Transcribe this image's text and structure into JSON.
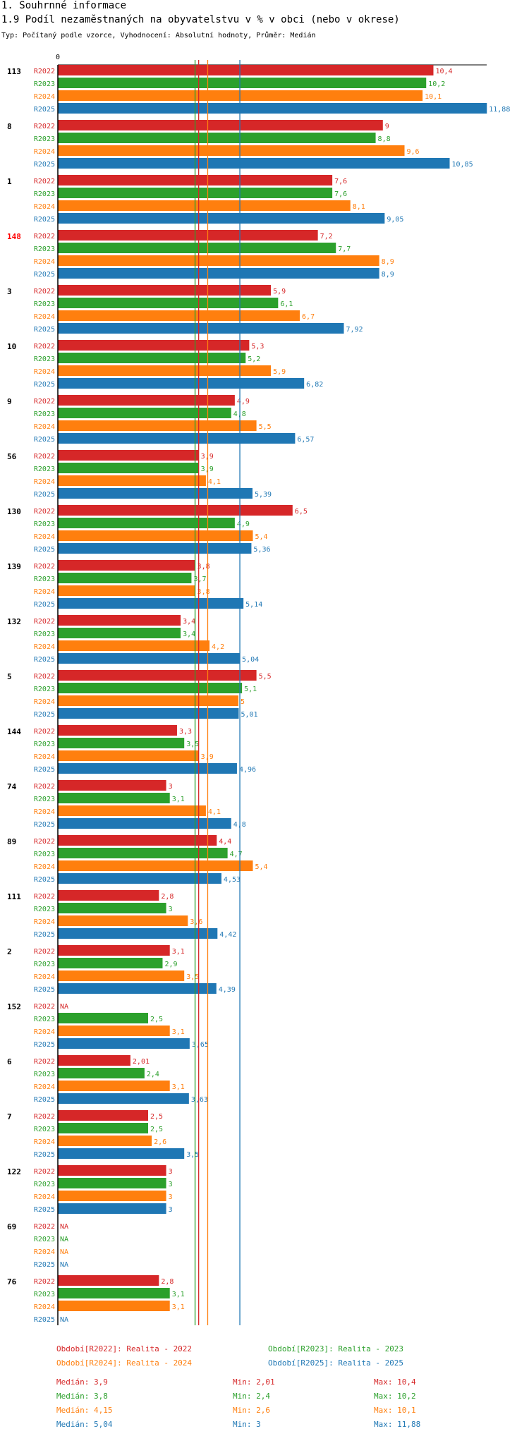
{
  "section_title": "1. Souhrnné informace",
  "chart_title": "1.9 Podíl nezaměstnaných na obyvatelstvu v % v obci (nebo v okrese)",
  "chart_subtitle": "Typ: Počítaný podle vzorce, Vyhodnocení: Absolutní hodnoty, Průměr: Medián",
  "colors": {
    "R2022": "#d62728",
    "R2023": "#2ca02c",
    "R2024": "#ff7f0e",
    "R2025": "#1f77b4",
    "highlight_group": "#ff0000"
  },
  "chart_data": {
    "type": "bar",
    "orientation": "horizontal",
    "x_tick_label": "0",
    "series_names": [
      "R2022",
      "R2023",
      "R2024",
      "R2025"
    ],
    "na_label": "NA",
    "groups": [
      {
        "label": "113",
        "highlight": false,
        "values": [
          10.4,
          10.2,
          10.1,
          11.88
        ],
        "labels": [
          "10,4",
          "10,2",
          "10,1",
          "11,88"
        ]
      },
      {
        "label": "8",
        "highlight": false,
        "values": [
          9,
          8.8,
          9.6,
          10.85
        ],
        "labels": [
          "9",
          "8,8",
          "9,6",
          "10,85"
        ]
      },
      {
        "label": "1",
        "highlight": false,
        "values": [
          7.6,
          7.6,
          8.1,
          9.05
        ],
        "labels": [
          "7,6",
          "7,6",
          "8,1",
          "9,05"
        ]
      },
      {
        "label": "148",
        "highlight": true,
        "values": [
          7.2,
          7.7,
          8.9,
          8.9
        ],
        "labels": [
          "7,2",
          "7,7",
          "8,9",
          "8,9"
        ]
      },
      {
        "label": "3",
        "highlight": false,
        "values": [
          5.9,
          6.1,
          6.7,
          7.92
        ],
        "labels": [
          "5,9",
          "6,1",
          "6,7",
          "7,92"
        ]
      },
      {
        "label": "10",
        "highlight": false,
        "values": [
          5.3,
          5.2,
          5.9,
          6.82
        ],
        "labels": [
          "5,3",
          "5,2",
          "5,9",
          "6,82"
        ]
      },
      {
        "label": "9",
        "highlight": false,
        "values": [
          4.9,
          4.8,
          5.5,
          6.57
        ],
        "labels": [
          "4,9",
          "4,8",
          "5,5",
          "6,57"
        ]
      },
      {
        "label": "56",
        "highlight": false,
        "values": [
          3.9,
          3.9,
          4.1,
          5.39
        ],
        "labels": [
          "3,9",
          "3,9",
          "4,1",
          "5,39"
        ]
      },
      {
        "label": "130",
        "highlight": false,
        "values": [
          6.5,
          4.9,
          5.4,
          5.36
        ],
        "labels": [
          "6,5",
          "4,9",
          "5,4",
          "5,36"
        ]
      },
      {
        "label": "139",
        "highlight": false,
        "values": [
          3.8,
          3.7,
          3.8,
          5.14
        ],
        "labels": [
          "3,8",
          "3,7",
          "3,8",
          "5,14"
        ]
      },
      {
        "label": "132",
        "highlight": false,
        "values": [
          3.4,
          3.4,
          4.2,
          5.04
        ],
        "labels": [
          "3,4",
          "3,4",
          "4,2",
          "5,04"
        ]
      },
      {
        "label": "5",
        "highlight": false,
        "values": [
          5.5,
          5.1,
          5,
          5.01
        ],
        "labels": [
          "5,5",
          "5,1",
          "5",
          "5,01"
        ]
      },
      {
        "label": "144",
        "highlight": false,
        "values": [
          3.3,
          3.5,
          3.9,
          4.96
        ],
        "labels": [
          "3,3",
          "3,5",
          "3,9",
          "4,96"
        ]
      },
      {
        "label": "74",
        "highlight": false,
        "values": [
          3,
          3.1,
          4.1,
          4.8
        ],
        "labels": [
          "3",
          "3,1",
          "4,1",
          "4,8"
        ]
      },
      {
        "label": "89",
        "highlight": false,
        "values": [
          4.4,
          4.7,
          5.4,
          4.53
        ],
        "labels": [
          "4,4",
          "4,7",
          "5,4",
          "4,53"
        ]
      },
      {
        "label": "111",
        "highlight": false,
        "values": [
          2.8,
          3,
          3.6,
          4.42
        ],
        "labels": [
          "2,8",
          "3",
          "3,6",
          "4,42"
        ]
      },
      {
        "label": "2",
        "highlight": false,
        "values": [
          3.1,
          2.9,
          3.5,
          4.39
        ],
        "labels": [
          "3,1",
          "2,9",
          "3,5",
          "4,39"
        ]
      },
      {
        "label": "152",
        "highlight": false,
        "values": [
          null,
          2.5,
          3.1,
          3.65
        ],
        "labels": [
          "NA",
          "2,5",
          "3,1",
          "3,65"
        ]
      },
      {
        "label": "6",
        "highlight": false,
        "values": [
          2.01,
          2.4,
          3.1,
          3.63
        ],
        "labels": [
          "2,01",
          "2,4",
          "3,1",
          "3,63"
        ]
      },
      {
        "label": "7",
        "highlight": false,
        "values": [
          2.5,
          2.5,
          2.6,
          3.5
        ],
        "labels": [
          "2,5",
          "2,5",
          "2,6",
          "3,5"
        ]
      },
      {
        "label": "122",
        "highlight": false,
        "values": [
          3,
          3,
          3,
          3
        ],
        "labels": [
          "3",
          "3",
          "3",
          "3"
        ]
      },
      {
        "label": "69",
        "highlight": false,
        "values": [
          null,
          null,
          null,
          null
        ],
        "labels": [
          "NA",
          "NA",
          "NA",
          "NA"
        ]
      },
      {
        "label": "76",
        "highlight": false,
        "values": [
          2.8,
          3.1,
          3.1,
          null
        ],
        "labels": [
          "2,8",
          "3,1",
          "3,1",
          "NA"
        ]
      }
    ],
    "medians": [
      3.9,
      3.8,
      4.15,
      5.04
    ]
  },
  "legend": {
    "periods": [
      {
        "series": "R2022",
        "text": "Období[R2022]: Realita - 2022"
      },
      {
        "series": "R2023",
        "text": "Období[R2023]: Realita - 2023"
      },
      {
        "series": "R2024",
        "text": "Období[R2024]: Realita - 2024"
      },
      {
        "series": "R2025",
        "text": "Období[R2025]: Realita - 2025"
      }
    ],
    "stats": [
      {
        "series": "R2022",
        "median": "Medián: 3,9",
        "min": "Min: 2,01",
        "max": "Max: 10,4"
      },
      {
        "series": "R2023",
        "median": "Medián: 3,8",
        "min": "Min: 2,4",
        "max": "Max: 10,2"
      },
      {
        "series": "R2024",
        "median": "Medián: 4,15",
        "min": "Min: 2,6",
        "max": "Max: 10,1"
      },
      {
        "series": "R2025",
        "median": "Medián: 5,04",
        "min": "Min: 3",
        "max": "Max: 11,88"
      }
    ]
  }
}
